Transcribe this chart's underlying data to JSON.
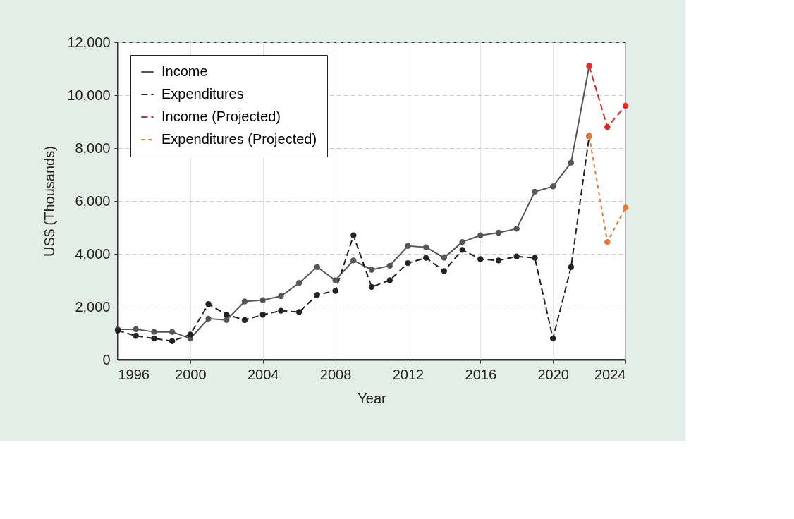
{
  "chart_data": {
    "type": "line",
    "xlabel": "Year",
    "ylabel": "US$ (Thousands)",
    "xlim": [
      1996,
      2024
    ],
    "xticks": [
      1996,
      2000,
      2004,
      2008,
      2012,
      2016,
      2020,
      2024
    ],
    "ylim": [
      0,
      12000
    ],
    "yticks": [
      {
        "value": 0,
        "label": "0"
      },
      {
        "value": 2000,
        "label": "2,000"
      },
      {
        "value": 4000,
        "label": "4,000"
      },
      {
        "value": 6000,
        "label": "6,000"
      },
      {
        "value": 8000,
        "label": "8,000"
      },
      {
        "value": 10000,
        "label": "10,000"
      },
      {
        "value": 12000,
        "label": "12,000"
      }
    ],
    "grid": true,
    "legend": "top left",
    "marker": "circle",
    "series": [
      {
        "name": "Income",
        "color": "#555555",
        "line_style": "solid",
        "x": [
          1996,
          1997,
          1998,
          1999,
          2000,
          2001,
          2002,
          2003,
          2004,
          2005,
          2006,
          2007,
          2008,
          2009,
          2010,
          2011,
          2012,
          2013,
          2014,
          2015,
          2016,
          2017,
          2018,
          2019,
          2020,
          2021,
          2022
        ],
        "values": [
          1150,
          1150,
          1050,
          1050,
          800,
          1550,
          1500,
          2200,
          2250,
          2400,
          2900,
          3500,
          3000,
          3750,
          3400,
          3550,
          4300,
          4250,
          3850,
          4450,
          4700,
          4800,
          4950,
          6350,
          6550,
          7450,
          11100
        ]
      },
      {
        "name": "Expenditures",
        "color": "#222222",
        "line_style": "dashed",
        "x": [
          1996,
          1997,
          1998,
          1999,
          2000,
          2001,
          2002,
          2003,
          2004,
          2005,
          2006,
          2007,
          2008,
          2009,
          2010,
          2011,
          2012,
          2013,
          2014,
          2015,
          2016,
          2017,
          2018,
          2019,
          2020,
          2021,
          2022
        ],
        "values": [
          1100,
          900,
          800,
          700,
          950,
          2100,
          1700,
          1500,
          1700,
          1850,
          1800,
          2450,
          2600,
          4700,
          2750,
          3000,
          3650,
          3850,
          3350,
          4150,
          3800,
          3750,
          3900,
          3850,
          800,
          3500,
          8450
        ]
      },
      {
        "name": "Income (Projected)",
        "color": "#e32b24",
        "line_style": "dashed",
        "x": [
          2022,
          2023,
          2024
        ],
        "values": [
          11100,
          8800,
          9600
        ]
      },
      {
        "name": "Expenditures (Projected)",
        "color": "#e8773a",
        "line_style": "dotted",
        "x": [
          2022,
          2023,
          2024
        ],
        "values": [
          8450,
          4450,
          5750
        ]
      }
    ]
  }
}
